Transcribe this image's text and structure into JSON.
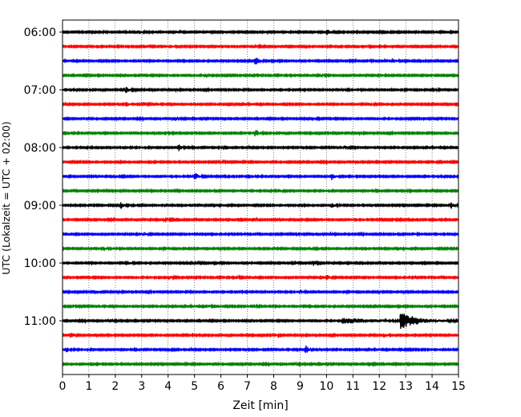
{
  "chart_data": {
    "type": "line",
    "title": "",
    "xlabel": "Zeit  [min]",
    "ylabel": "UTC (Lokalzeit = UTC + 02:00)",
    "xlim": [
      0,
      15
    ],
    "x_ticks": [
      0,
      1,
      2,
      3,
      4,
      5,
      6,
      7,
      8,
      9,
      10,
      11,
      12,
      13,
      14,
      15
    ],
    "x_tick_labels": [
      "0",
      "1",
      "2",
      "3",
      "4",
      "5",
      "6",
      "7",
      "8",
      "9",
      "10",
      "11",
      "12",
      "13",
      "14",
      "15"
    ],
    "y_tick_labels": [
      "06:00",
      "07:00",
      "08:00",
      "09:00",
      "10:00",
      "11:00"
    ],
    "grid": "vertical-dotted",
    "trace_colors": [
      "#000000",
      "#ff0000",
      "#0000ff",
      "#008000"
    ],
    "trace_minutes": 15,
    "traces": [
      {
        "start": "06:00",
        "color": "#000000",
        "events": [
          {
            "t": 10.0,
            "amp": 0.45
          },
          {
            "t": 1.4,
            "amp": 0.2
          },
          {
            "t": 2.9,
            "amp": 0.18
          },
          {
            "t": 5.5,
            "amp": 0.16
          }
        ]
      },
      {
        "start": "06:15",
        "color": "#ff0000",
        "events": [
          {
            "t": 3.2,
            "amp": 0.25
          },
          {
            "t": 7.3,
            "amp": 0.2
          },
          {
            "t": 11.4,
            "amp": 0.2
          }
        ]
      },
      {
        "start": "06:30",
        "color": "#0000ff",
        "events": [
          {
            "t": 7.3,
            "amp": 0.75
          },
          {
            "t": 12.5,
            "amp": 0.35
          },
          {
            "t": 11.5,
            "amp": 0.25
          }
        ]
      },
      {
        "start": "06:45",
        "color": "#008000",
        "events": [
          {
            "t": 5.4,
            "amp": 0.18
          },
          {
            "t": 9.8,
            "amp": 0.15
          }
        ]
      },
      {
        "start": "07:00",
        "color": "#000000",
        "events": [
          {
            "t": 2.4,
            "amp": 0.4
          },
          {
            "t": 14.0,
            "amp": 0.35
          },
          {
            "t": 10.6,
            "amp": 0.2
          }
        ]
      },
      {
        "start": "07:15",
        "color": "#ff0000",
        "events": [
          {
            "t": 2.4,
            "amp": 0.3
          },
          {
            "t": 6.3,
            "amp": 0.28
          },
          {
            "t": 11.6,
            "amp": 0.25
          },
          {
            "t": 3.1,
            "amp": 0.2
          }
        ]
      },
      {
        "start": "07:30",
        "color": "#0000ff",
        "events": [
          {
            "t": 4.3,
            "amp": 0.18
          },
          {
            "t": 9.5,
            "amp": 0.18
          }
        ]
      },
      {
        "start": "07:45",
        "color": "#008000",
        "events": [
          {
            "t": 7.3,
            "amp": 0.55
          },
          {
            "t": 3.9,
            "amp": 0.18
          }
        ]
      },
      {
        "start": "08:00",
        "color": "#000000",
        "events": [
          {
            "t": 4.4,
            "amp": 0.42
          },
          {
            "t": 5.9,
            "amp": 0.25
          },
          {
            "t": 10.7,
            "amp": 0.2
          }
        ]
      },
      {
        "start": "08:15",
        "color": "#ff0000",
        "events": [
          {
            "t": 14.0,
            "amp": 0.22
          },
          {
            "t": 6.0,
            "amp": 0.15
          }
        ]
      },
      {
        "start": "08:30",
        "color": "#0000ff",
        "events": [
          {
            "t": 5.0,
            "amp": 0.6
          },
          {
            "t": 10.2,
            "amp": 0.48
          },
          {
            "t": 2.0,
            "amp": 0.2
          }
        ]
      },
      {
        "start": "08:45",
        "color": "#008000",
        "events": [
          {
            "t": 8.2,
            "amp": 0.18
          },
          {
            "t": 13.0,
            "amp": 0.15
          }
        ]
      },
      {
        "start": "09:00",
        "color": "#000000",
        "events": [
          {
            "t": 2.2,
            "amp": 0.5
          },
          {
            "t": 14.7,
            "amp": 0.5
          },
          {
            "t": 10.2,
            "amp": 0.28
          },
          {
            "t": 5.2,
            "amp": 0.2
          }
        ]
      },
      {
        "start": "09:15",
        "color": "#ff0000",
        "events": [
          {
            "t": 3.9,
            "amp": 0.32
          },
          {
            "t": 7.2,
            "amp": 0.25
          },
          {
            "t": 12.5,
            "amp": 0.22
          }
        ]
      },
      {
        "start": "09:30",
        "color": "#0000ff",
        "events": [
          {
            "t": 3.1,
            "amp": 0.18
          },
          {
            "t": 13.3,
            "amp": 0.16
          }
        ]
      },
      {
        "start": "09:45",
        "color": "#008000",
        "events": [
          {
            "t": 1.6,
            "amp": 0.15
          },
          {
            "t": 9.4,
            "amp": 0.15
          }
        ]
      },
      {
        "start": "10:00",
        "color": "#000000",
        "events": [
          {
            "t": 9.5,
            "amp": 0.35
          },
          {
            "t": 5.0,
            "amp": 0.25
          },
          {
            "t": 2.5,
            "amp": 0.2
          },
          {
            "t": 8.8,
            "amp": 0.2
          }
        ]
      },
      {
        "start": "10:15",
        "color": "#ff0000",
        "events": [
          {
            "t": 10.0,
            "amp": 0.35
          },
          {
            "t": 4.0,
            "amp": 0.25
          },
          {
            "t": 6.6,
            "amp": 0.2
          }
        ]
      },
      {
        "start": "10:30",
        "color": "#0000ff",
        "events": [
          {
            "t": 1.3,
            "amp": 0.25
          },
          {
            "t": 9.0,
            "amp": 0.2
          },
          {
            "t": 12.0,
            "amp": 0.18
          }
        ]
      },
      {
        "start": "10:45",
        "color": "#008000",
        "events": [
          {
            "t": 7.2,
            "amp": 0.3
          },
          {
            "t": 0.4,
            "amp": 0.18
          },
          {
            "t": 5.5,
            "amp": 0.18
          }
        ]
      },
      {
        "start": "11:00",
        "color": "#000000",
        "events": [
          {
            "t": 12.8,
            "amp": 1.1,
            "dur": 1.0
          },
          {
            "t": 10.6,
            "amp": 0.35,
            "dur": 2.0
          },
          {
            "t": 1.8,
            "amp": 0.25
          }
        ]
      },
      {
        "start": "11:15",
        "color": "#ff0000",
        "events": [
          {
            "t": 0.3,
            "amp": 0.4
          },
          {
            "t": 4.7,
            "amp": 0.3
          },
          {
            "t": 8.0,
            "amp": 0.22
          },
          {
            "t": 12.2,
            "amp": 0.22
          }
        ]
      },
      {
        "start": "11:30",
        "color": "#0000ff",
        "events": [
          {
            "t": 9.2,
            "amp": 0.65
          },
          {
            "t": 12.8,
            "amp": 0.38
          },
          {
            "t": 0.15,
            "amp": 0.35
          },
          {
            "t": 4.0,
            "amp": 0.25
          }
        ]
      },
      {
        "start": "11:45",
        "color": "#008000",
        "events": [
          {
            "t": 11.6,
            "amp": 0.3
          },
          {
            "t": 8.8,
            "amp": 0.18
          }
        ]
      }
    ]
  }
}
